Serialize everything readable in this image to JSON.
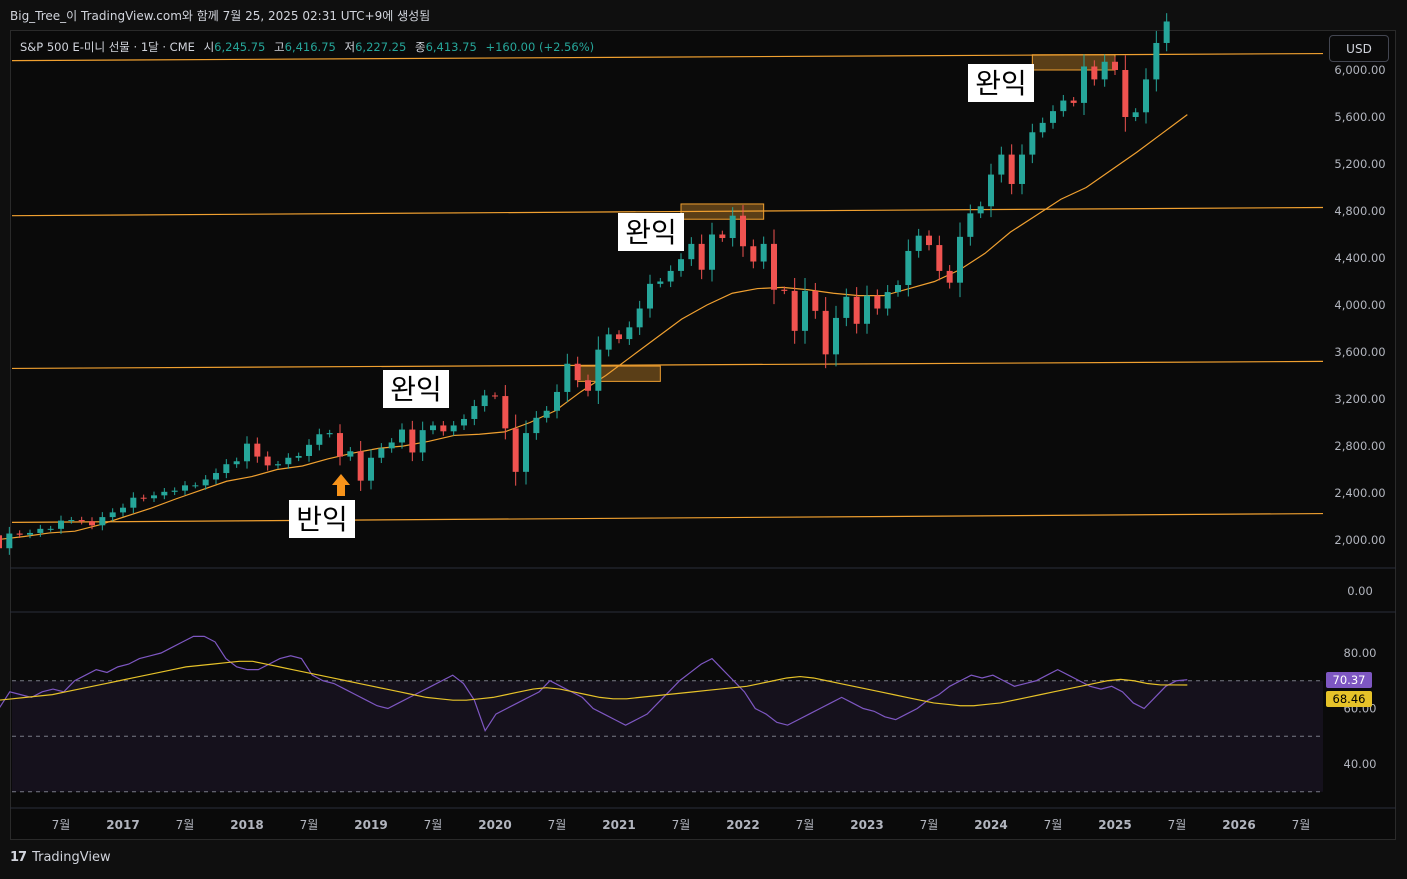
{
  "caption": "Big_Tree_이 TradingView.com와 함께 7월 25, 2025 02:31 UTC+9에 생성됨",
  "symbol": {
    "name": "S&P 500 E-미니 선물 · 1달 · CME",
    "open_label": "시",
    "open": "6,245.75",
    "high_label": "고",
    "high": "6,416.75",
    "low_label": "저",
    "low": "6,227.25",
    "close_label": "종",
    "close": "6,413.75",
    "change": "+160.00 (+2.56%)"
  },
  "currency_button": "USD",
  "brand": "TradingView",
  "colors": {
    "up": "#26a69a",
    "down": "#ef5350",
    "ma": "#f0a030",
    "rsi": "#7e57c2",
    "rsi_ma": "#e6c229",
    "level": "#f0a030"
  },
  "chart_data": [
    {
      "type": "candlestick",
      "interval": "1M",
      "title": "S&P 500 E-미니 선물 · 1달 · CME",
      "x_ticks": [
        "7월",
        "2017",
        "7월",
        "2018",
        "7월",
        "2019",
        "7월",
        "2020",
        "7월",
        "2021",
        "7월",
        "2022",
        "7월",
        "2023",
        "7월",
        "2024",
        "7월",
        "2025",
        "7월",
        "2026",
        "7월"
      ],
      "y_ticks": [
        "2,000.00",
        "2,400.00",
        "2,800.00",
        "3,200.00",
        "3,600.00",
        "4,000.00",
        "4,400.00",
        "4,800.00",
        "5,200.00",
        "5,600.00",
        "6,000.00"
      ],
      "ylim": [
        1850,
        6400
      ],
      "x_start": "2016-01",
      "closes": [
        1930,
        2055,
        2045,
        2060,
        2095,
        2095,
        2165,
        2170,
        2160,
        2125,
        2195,
        2235,
        2275,
        2360,
        2355,
        2380,
        2410,
        2420,
        2465,
        2465,
        2515,
        2570,
        2645,
        2670,
        2820,
        2710,
        2635,
        2645,
        2700,
        2715,
        2810,
        2900,
        2910,
        2710,
        2755,
        2505,
        2700,
        2780,
        2830,
        2940,
        2745,
        2935,
        2975,
        2925,
        2975,
        3030,
        3140,
        3230,
        3225,
        2950,
        2580,
        2910,
        3040,
        3100,
        3260,
        3500,
        3360,
        3270,
        3620,
        3750,
        3710,
        3810,
        3970,
        4180,
        4200,
        4290,
        4390,
        4520,
        4300,
        4600,
        4570,
        4760,
        4500,
        4370,
        4520,
        4130,
        4120,
        3780,
        4120,
        3950,
        3580,
        3890,
        4070,
        3840,
        4080,
        3970,
        4110,
        4170,
        4460,
        4590,
        4510,
        4290,
        4190,
        4580,
        4780,
        4840,
        5110,
        5280,
        5030,
        5280,
        5470,
        5550,
        5650,
        5740,
        5720,
        6030,
        5920,
        6070,
        6000,
        5600,
        5640,
        5920,
        6230,
        6413
      ],
      "opens": [
        2040,
        1930,
        2055,
        2045,
        2060,
        2095,
        2095,
        2165,
        2170,
        2160,
        2125,
        2195,
        2235,
        2275,
        2360,
        2355,
        2380,
        2410,
        2420,
        2465,
        2465,
        2515,
        2570,
        2645,
        2670,
        2820,
        2710,
        2635,
        2645,
        2700,
        2715,
        2810,
        2900,
        2910,
        2710,
        2755,
        2505,
        2700,
        2780,
        2830,
        2940,
        2745,
        2935,
        2975,
        2925,
        2975,
        3030,
        3140,
        3230,
        3225,
        2950,
        2580,
        2910,
        3040,
        3100,
        3260,
        3500,
        3360,
        3270,
        3620,
        3750,
        3710,
        3810,
        3970,
        4180,
        4200,
        4290,
        4390,
        4520,
        4300,
        4600,
        4570,
        4760,
        4500,
        4370,
        4520,
        4130,
        4120,
        3780,
        4120,
        3950,
        3580,
        3890,
        4070,
        3840,
        4080,
        3970,
        4110,
        4170,
        4460,
        4590,
        4510,
        4290,
        4190,
        4580,
        4780,
        4840,
        5110,
        5280,
        5030,
        5280,
        5470,
        5550,
        5650,
        5740,
        5720,
        6030,
        5920,
        6070,
        6000,
        5600,
        5640,
        5920,
        6230
      ],
      "moving_average": {
        "start": "2016-01",
        "end": "2025-07",
        "values": [
          2005,
          2030,
          2060,
          2075,
          2130,
          2200,
          2270,
          2350,
          2425,
          2500,
          2540,
          2600,
          2630,
          2690,
          2740,
          2780,
          2800,
          2840,
          2890,
          2900,
          2920,
          3000,
          3100,
          3260,
          3400,
          3560,
          3720,
          3880,
          4000,
          4100,
          4140,
          4150,
          4130,
          4100,
          4080,
          4080,
          4140,
          4200,
          4300,
          4440,
          4620,
          4760,
          4900,
          5000,
          5150,
          5300,
          5460,
          5620
        ]
      }
    },
    {
      "type": "line",
      "title": "RSI",
      "y_ticks": [
        "40.00",
        "60.00",
        "80.00"
      ],
      "ylim": [
        30,
        95
      ],
      "levels": [
        70,
        50,
        30
      ],
      "rsi": [
        60,
        66,
        65,
        64,
        66,
        67,
        66,
        70,
        72,
        74,
        73,
        75,
        76,
        78,
        79,
        80,
        82,
        84,
        86,
        86,
        84,
        78,
        75,
        74,
        74,
        76,
        78,
        79,
        78,
        72,
        70,
        69,
        67,
        65,
        63,
        61,
        60,
        62,
        64,
        66,
        68,
        70,
        72,
        69,
        63,
        52,
        58,
        60,
        62,
        64,
        66,
        70,
        68,
        66,
        64,
        60,
        58,
        56,
        54,
        56,
        58,
        62,
        66,
        70,
        73,
        76,
        78,
        74,
        70,
        66,
        60,
        58,
        55,
        54,
        56,
        58,
        60,
        62,
        64,
        62,
        60,
        59,
        57,
        56,
        58,
        60,
        63,
        65,
        68,
        70,
        72,
        71,
        72,
        70,
        68,
        69,
        70,
        72,
        74,
        72,
        70,
        68,
        67,
        68,
        66,
        62,
        60,
        64,
        68,
        70,
        70.37
      ],
      "rsi_ma": [
        63,
        63.5,
        64,
        64.5,
        65,
        66,
        67,
        68,
        69,
        70,
        71,
        72,
        73,
        74,
        75,
        75.5,
        76,
        76.5,
        77,
        77,
        76,
        75,
        74,
        73,
        72,
        71,
        70,
        69,
        68,
        67,
        66,
        65,
        64,
        63.5,
        63,
        63,
        63.5,
        64,
        65,
        66,
        67,
        67.5,
        67,
        66,
        65,
        64,
        63.5,
        63.5,
        64,
        64.5,
        65,
        65.5,
        66,
        66.5,
        67,
        67.5,
        68,
        69,
        70,
        71,
        71.5,
        71,
        70,
        69,
        68,
        67,
        66,
        65,
        64,
        63,
        62,
        61.5,
        61,
        61,
        61.5,
        62,
        63,
        64,
        65,
        66,
        67,
        68,
        69,
        70,
        70.5,
        70,
        69,
        68.5,
        68.5,
        68.46
      ],
      "last_rsi": "70.37",
      "last_rsi_ma": "68.46"
    },
    {
      "type": "line",
      "title": "",
      "y_ticks": [
        "0.00"
      ]
    }
  ],
  "annotations": [
    {
      "text": "완익"
    },
    {
      "text": "완익"
    },
    {
      "text": "완익"
    },
    {
      "text": "반익"
    }
  ]
}
